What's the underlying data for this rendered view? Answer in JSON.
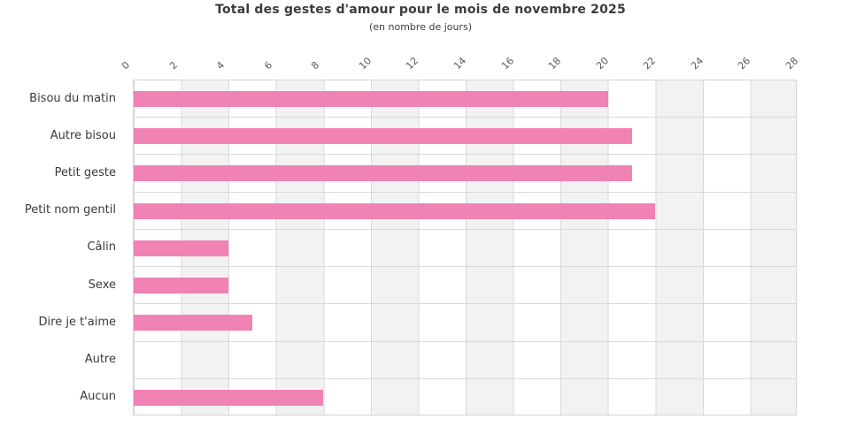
{
  "title": "Total des gestes d'amour pour le mois de novembre 2025",
  "subtitle": "(en nombre de jours)",
  "chart_data": {
    "type": "bar",
    "orientation": "horizontal",
    "title": "Total des gestes d'amour pour le mois de novembre 2025",
    "subtitle": "(en nombre de jours)",
    "categories": [
      "Bisou du matin",
      "Autre bisou",
      "Petit geste",
      "Petit nom gentil",
      "Câlin",
      "Sexe",
      "Dire je t'aime",
      "Autre",
      "Aucun"
    ],
    "values": [
      20,
      21,
      21,
      22,
      4,
      4,
      5,
      0,
      8
    ],
    "xlabel": "",
    "ylabel": "",
    "xlim": [
      0,
      28
    ],
    "x_ticks": [
      0,
      2,
      4,
      6,
      8,
      10,
      12,
      14,
      16,
      18,
      20,
      22,
      24,
      26,
      28
    ],
    "x_axis_position": "top",
    "tick_label_rotation_deg": -45,
    "grid": true,
    "band_fill": true,
    "legend": "none",
    "colors": {
      "bar": "#f082b4",
      "band_gray": "#f2f2f2",
      "gridline": "#d9d9d9",
      "plot_border": "#d4d4d4",
      "title_text": "#3c3c3c",
      "category_text": "#3a3a3a",
      "tick_text": "#595959",
      "background": "#ffffff"
    }
  }
}
